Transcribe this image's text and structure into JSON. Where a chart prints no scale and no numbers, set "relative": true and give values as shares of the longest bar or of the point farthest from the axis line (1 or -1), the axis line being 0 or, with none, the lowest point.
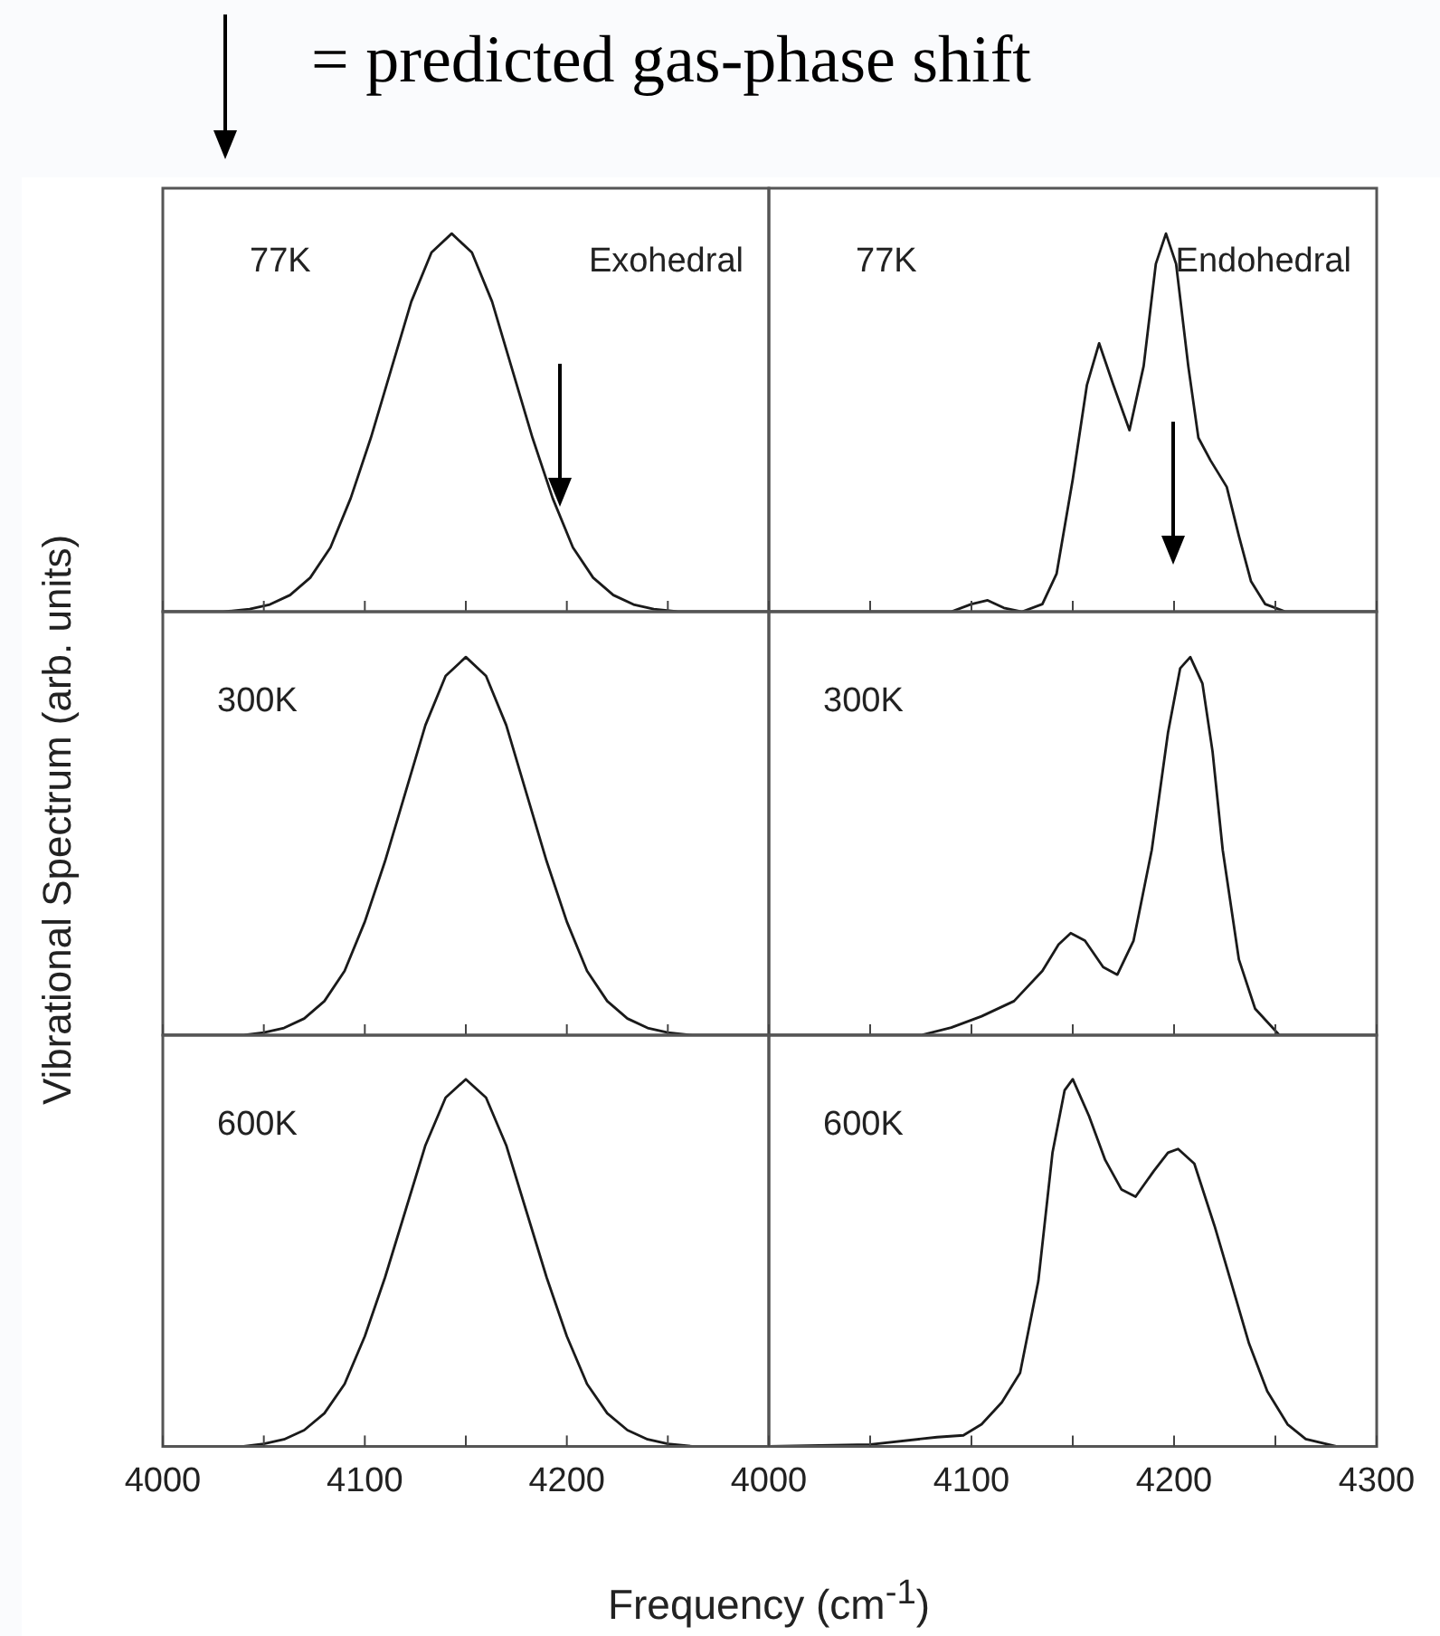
{
  "chart_data": [
    {
      "type": "line",
      "relative": true,
      "annotations": [
        "77K",
        "Exohedral",
        "= predicted gas-phase shift"
      ],
      "ylabel": "Vibrational Spectrum (arb. units)",
      "xlim": [
        4000,
        4300
      ],
      "xticks": [
        4000,
        {
          "value": 4050,
          "label": null
        },
        4100,
        {
          "value": 4150,
          "label": null
        },
        4200,
        {
          "value": 4250,
          "label": null
        }
      ],
      "tick_labels": false,
      "color": "#1a1a1a",
      "x": [
        4000,
        4030,
        4043,
        4053,
        4063,
        4073,
        4083,
        4093,
        4103,
        4113,
        4123,
        4133,
        4143,
        4153,
        4163,
        4173,
        4183,
        4193,
        4203,
        4213,
        4223,
        4233,
        4243,
        4255,
        4300
      ],
      "values": [
        0,
        0,
        0.007,
        0.019,
        0.044,
        0.09,
        0.17,
        0.3,
        0.46,
        0.64,
        0.82,
        0.95,
        1,
        0.95,
        0.82,
        0.64,
        0.46,
        0.3,
        0.17,
        0.09,
        0.044,
        0.019,
        0.007,
        0,
        0
      ]
    },
    {
      "type": "line",
      "relative": true,
      "annotations": [
        "77K",
        "Endohedral"
      ],
      "xlim": [
        4000,
        4300
      ],
      "xticks": [
        4000,
        {
          "value": 4050,
          "label": null
        },
        4100,
        {
          "value": 4150,
          "label": null
        },
        4200,
        {
          "value": 4250,
          "label": null
        },
        4300
      ],
      "tick_labels": false,
      "color": "#1a1a1a",
      "x": [
        4000,
        4090,
        4100,
        4108,
        4116,
        4125,
        4135,
        4142,
        4150,
        4157,
        4163,
        4170,
        4178,
        4185,
        4191,
        4196,
        4201,
        4207,
        4212,
        4218,
        4226,
        4232,
        4238,
        4245,
        4255,
        4300
      ],
      "values": [
        0,
        0,
        0.02,
        0.03,
        0.01,
        0,
        0.02,
        0.1,
        0.35,
        0.6,
        0.71,
        0.6,
        0.48,
        0.65,
        0.92,
        1,
        0.92,
        0.65,
        0.46,
        0.4,
        0.33,
        0.2,
        0.08,
        0.02,
        0,
        0
      ]
    },
    {
      "type": "line",
      "relative": true,
      "annotations": [
        "300K"
      ],
      "xlim": [
        4000,
        4300
      ],
      "xticks": [
        4000,
        {
          "value": 4050,
          "label": null
        },
        4100,
        {
          "value": 4150,
          "label": null
        },
        4200,
        {
          "value": 4250,
          "label": null
        }
      ],
      "tick_labels": false,
      "color": "#1a1a1a",
      "x": [
        4000,
        4040,
        4050,
        4060,
        4070,
        4080,
        4090,
        4100,
        4110,
        4120,
        4130,
        4140,
        4150,
        4160,
        4170,
        4180,
        4190,
        4200,
        4210,
        4220,
        4230,
        4240,
        4250,
        4262,
        4300
      ],
      "values": [
        0,
        0,
        0.007,
        0.019,
        0.044,
        0.09,
        0.17,
        0.3,
        0.46,
        0.64,
        0.82,
        0.95,
        1,
        0.95,
        0.82,
        0.64,
        0.46,
        0.3,
        0.17,
        0.09,
        0.044,
        0.019,
        0.007,
        0,
        0
      ]
    },
    {
      "type": "line",
      "relative": true,
      "annotations": [
        "300K"
      ],
      "xlim": [
        4000,
        4300
      ],
      "xticks": [
        4000,
        {
          "value": 4050,
          "label": null
        },
        4100,
        {
          "value": 4150,
          "label": null
        },
        4200,
        {
          "value": 4250,
          "label": null
        },
        4300
      ],
      "tick_labels": false,
      "color": "#1a1a1a",
      "x": [
        4000,
        4075,
        4090,
        4105,
        4121,
        4135,
        4143,
        4149,
        4156,
        4165,
        4172,
        4180,
        4189,
        4197,
        4203,
        4208,
        4214,
        4219,
        4224,
        4232,
        4240,
        4252,
        4300
      ],
      "values": [
        0,
        0,
        0.02,
        0.05,
        0.09,
        0.17,
        0.24,
        0.27,
        0.25,
        0.18,
        0.16,
        0.25,
        0.49,
        0.8,
        0.97,
        1,
        0.93,
        0.75,
        0.49,
        0.2,
        0.07,
        0,
        0
      ]
    },
    {
      "type": "line",
      "relative": true,
      "annotations": [
        "600K"
      ],
      "xlabel": "Frequency (cm$^{-1}$)",
      "xlim": [
        4000,
        4300
      ],
      "xticks": [
        4000,
        {
          "value": 4050,
          "label": null
        },
        4100,
        {
          "value": 4150,
          "label": null
        },
        4200,
        {
          "value": 4250,
          "label": null
        }
      ],
      "tick_labels": "x",
      "color": "#1a1a1a",
      "x": [
        4000,
        4040,
        4050,
        4060,
        4070,
        4080,
        4090,
        4100,
        4110,
        4120,
        4130,
        4140,
        4150,
        4160,
        4170,
        4180,
        4190,
        4200,
        4210,
        4220,
        4230,
        4240,
        4250,
        4262,
        4300
      ],
      "values": [
        0,
        0,
        0.007,
        0.019,
        0.044,
        0.09,
        0.17,
        0.3,
        0.46,
        0.64,
        0.82,
        0.95,
        1,
        0.95,
        0.82,
        0.64,
        0.46,
        0.3,
        0.17,
        0.09,
        0.044,
        0.019,
        0.007,
        0,
        0
      ]
    },
    {
      "type": "line",
      "relative": true,
      "annotations": [
        "600K"
      ],
      "xlim": [
        4000,
        4300
      ],
      "xticks": [
        4000,
        {
          "value": 4050,
          "label": null
        },
        4100,
        {
          "value": 4150,
          "label": null
        },
        4200,
        {
          "value": 4250,
          "label": null
        },
        4300
      ],
      "tick_labels": "x",
      "color": "#1a1a1a",
      "x": [
        4000,
        4050,
        4083,
        4096,
        4105,
        4115,
        4124,
        4133,
        4140,
        4146,
        4150,
        4158,
        4166,
        4174,
        4181,
        4190,
        4197,
        4202,
        4210,
        4220,
        4228,
        4237,
        4246,
        4256,
        4265,
        4280,
        4300
      ],
      "values": [
        0,
        0.005,
        0.025,
        0.03,
        0.06,
        0.12,
        0.2,
        0.45,
        0.8,
        0.97,
        1,
        0.9,
        0.78,
        0.7,
        0.68,
        0.75,
        0.8,
        0.81,
        0.77,
        0.6,
        0.45,
        0.28,
        0.15,
        0.06,
        0.02,
        0,
        0
      ]
    }
  ]
}
